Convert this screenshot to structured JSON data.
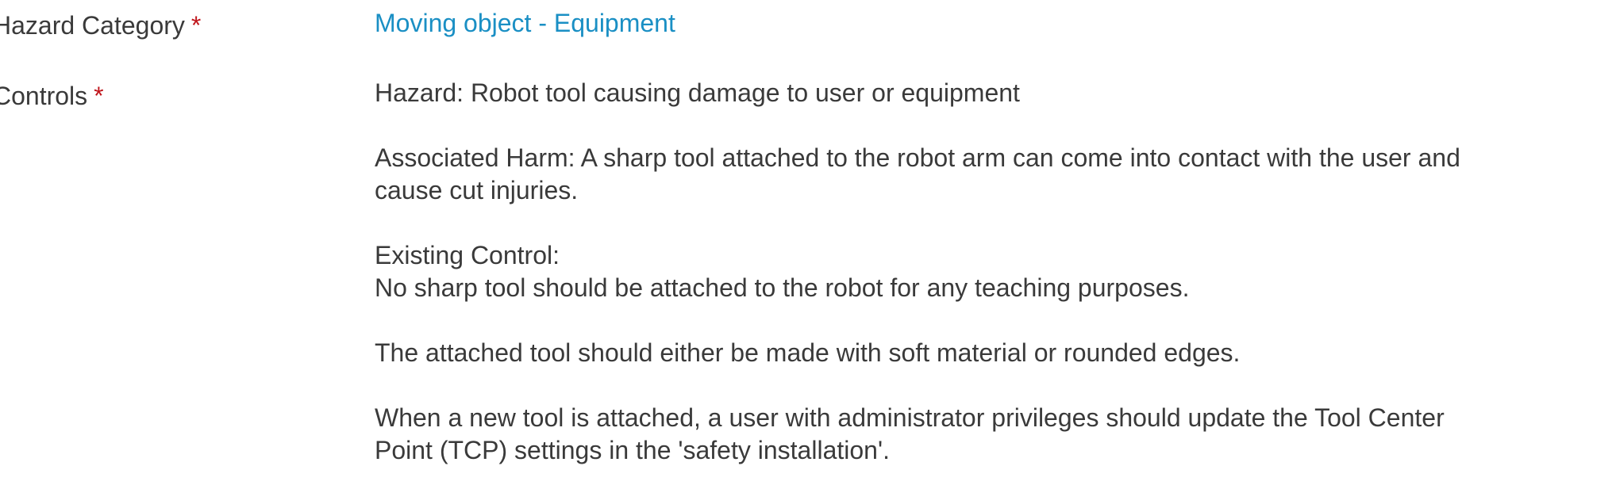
{
  "form": {
    "hazard_category": {
      "label": "Hazard Category",
      "required_marker": "*",
      "value": "Moving object - Equipment"
    },
    "controls": {
      "label": "Controls",
      "required_marker": "*",
      "paragraphs": [
        {
          "lines": [
            "Hazard: Robot tool causing damage to user or equipment"
          ]
        },
        {
          "lines": [
            "Associated Harm: A sharp tool attached to the robot arm can come into contact with the user and",
            "cause cut injuries."
          ]
        },
        {
          "lines": [
            "Existing Control:",
            "No sharp tool should be attached to the robot for any teaching purposes."
          ]
        },
        {
          "lines": [
            "The attached tool should either be made with soft material or rounded edges."
          ]
        },
        {
          "lines": [
            "When a new tool is attached, a user with administrator privileges should update the Tool Center",
            "Point (TCP) settings in the 'safety installation'."
          ]
        }
      ]
    }
  },
  "colors": {
    "text": "#3a3a3a",
    "link": "#1a8fc4",
    "required": "#c0151b"
  }
}
